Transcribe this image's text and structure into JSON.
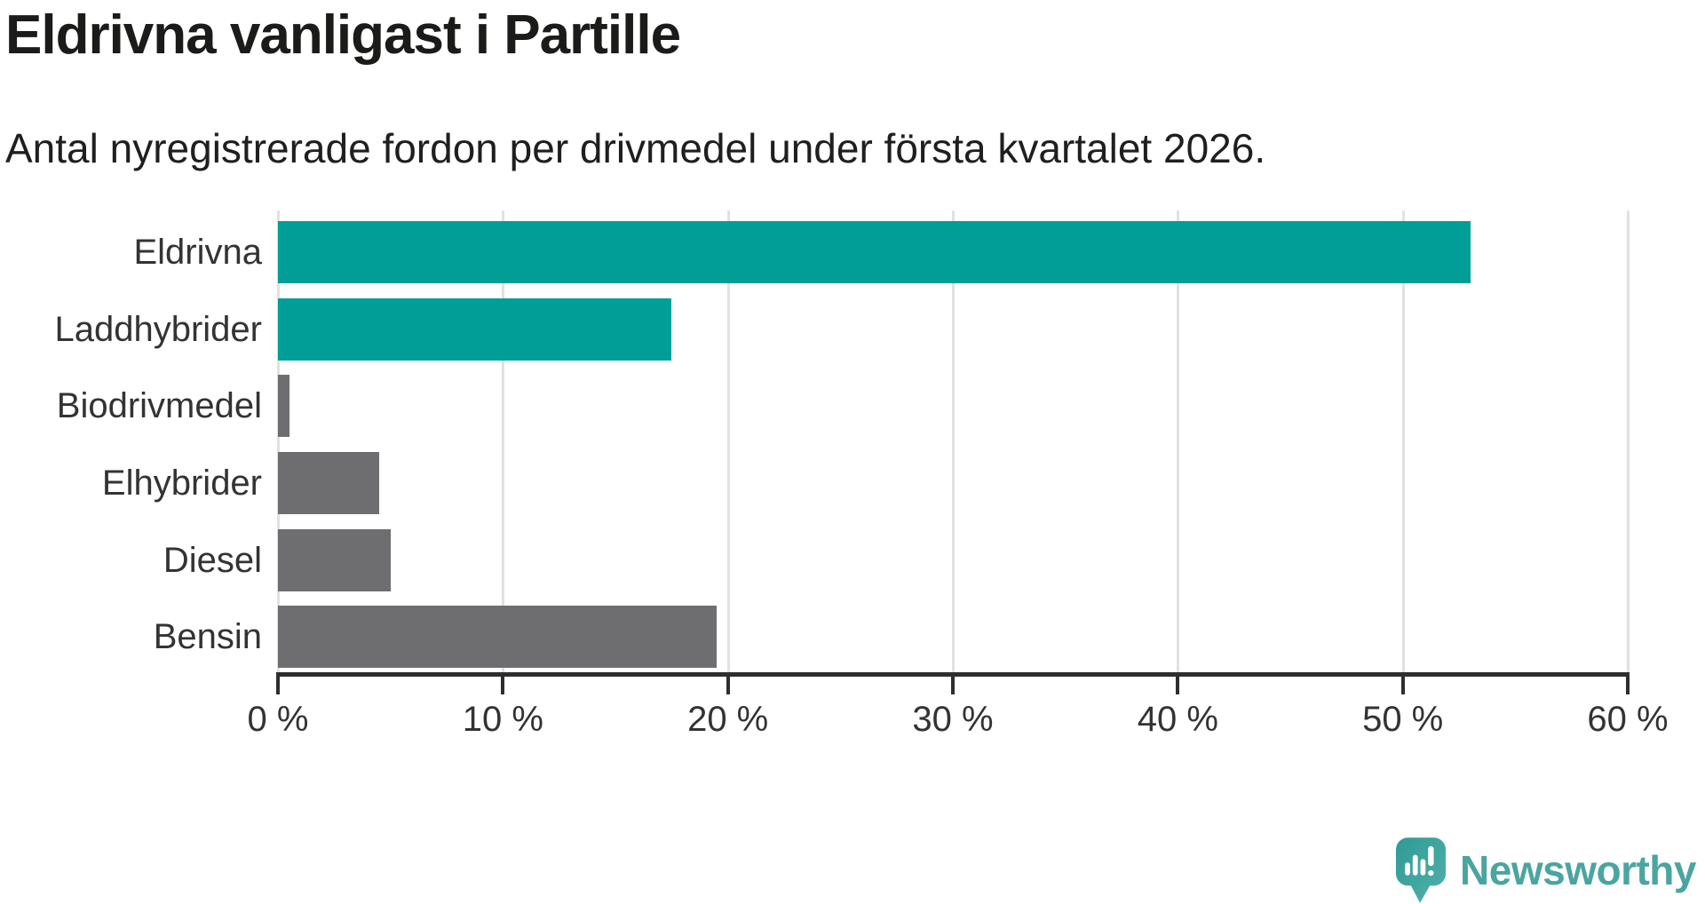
{
  "header": {
    "title": "Eldrivna vanligast i Partille",
    "subtitle": "Antal nyregistrerade fordon per drivmedel under första kvartalet 2026."
  },
  "chart_data": {
    "type": "bar",
    "orientation": "horizontal",
    "title": "Eldrivna vanligast i Partille",
    "subtitle": "Antal nyregistrerade fordon per drivmedel under första kvartalet 2026.",
    "categories": [
      "Eldrivna",
      "Laddhybrider",
      "Biodrivmedel",
      "Elhybrider",
      "Diesel",
      "Bensin"
    ],
    "values": [
      53,
      17.5,
      0.5,
      4.5,
      5,
      19.5
    ],
    "unit": "%",
    "bar_colors": [
      "#009e97",
      "#009e97",
      "#6e6e71",
      "#6e6e71",
      "#6e6e71",
      "#6e6e71"
    ],
    "xlabel": "",
    "ylabel": "",
    "xlim": [
      0,
      60
    ],
    "x_ticks": [
      0,
      10,
      20,
      30,
      40,
      50,
      60
    ],
    "x_tick_labels": [
      "0 %",
      "10 %",
      "20 %",
      "30 %",
      "40 %",
      "50 %",
      "60 %"
    ],
    "grid": true,
    "legend": "none"
  },
  "colors": {
    "teal_bar": "#009e97",
    "gray_bar": "#6e6e71",
    "gridline": "#e1e1e1",
    "axis": "#2e2e2e",
    "text": "#333333",
    "title_text": "#1b1b19",
    "logo_teal": "#4aa5a0",
    "logo_icon_dark": "#2f9b95",
    "logo_icon_light": "#52b0aa"
  },
  "branding": {
    "logo_text": "Newsworthy",
    "logo_icon": "newsworthy-speech-bubble-chart-icon"
  }
}
